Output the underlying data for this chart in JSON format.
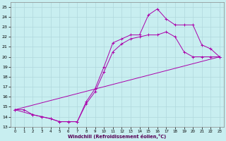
{
  "xlabel": "Windchill (Refroidissement éolien,°C)",
  "bg_color": "#c8eef0",
  "grid_color": "#b0d8dc",
  "line_color": "#aa00aa",
  "xlim": [
    -0.5,
    23.5
  ],
  "ylim": [
    13,
    25.5
  ],
  "xticks": [
    0,
    1,
    2,
    3,
    4,
    5,
    6,
    7,
    8,
    9,
    10,
    11,
    12,
    13,
    14,
    15,
    16,
    17,
    18,
    19,
    20,
    21,
    22,
    23
  ],
  "yticks": [
    13,
    14,
    15,
    16,
    17,
    18,
    19,
    20,
    21,
    22,
    23,
    24,
    25
  ],
  "line1_x": [
    0,
    1,
    2,
    3,
    4,
    5,
    6,
    7,
    8,
    9,
    10,
    11,
    12,
    13,
    14,
    15,
    16,
    17,
    18,
    19,
    20,
    21,
    22,
    23
  ],
  "line1_y": [
    14.7,
    14.7,
    14.2,
    14.0,
    13.8,
    13.5,
    13.5,
    13.5,
    15.5,
    16.8,
    19.0,
    21.4,
    21.8,
    22.2,
    22.2,
    24.2,
    24.8,
    23.8,
    23.2,
    23.2,
    23.2,
    21.2,
    20.8,
    20.0
  ],
  "line2_x": [
    0,
    2,
    3,
    4,
    5,
    6,
    7,
    8,
    9,
    10,
    11,
    12,
    13,
    14,
    15,
    16,
    17,
    18,
    19,
    20,
    21,
    22,
    23
  ],
  "line2_y": [
    14.7,
    14.2,
    14.0,
    13.8,
    13.5,
    13.5,
    13.5,
    15.3,
    16.5,
    18.5,
    20.5,
    21.3,
    21.8,
    22.0,
    22.2,
    22.2,
    22.5,
    22.0,
    20.5,
    20.0,
    20.0,
    20.0,
    20.0
  ],
  "line3_x": [
    0,
    23
  ],
  "line3_y": [
    14.7,
    20.0
  ]
}
